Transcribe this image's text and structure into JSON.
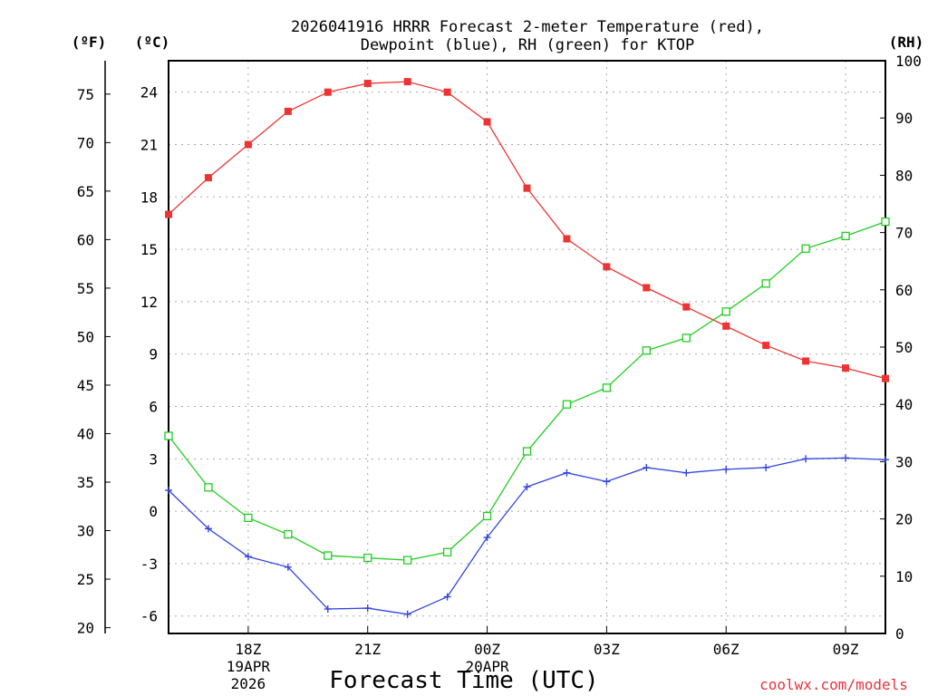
{
  "chart_data": {
    "type": "line",
    "title_line1": "2026041916 HRRR Forecast 2-meter Temperature (red),",
    "title_line2": "Dewpoint (blue), RH (green) for KTOP",
    "xlabel": "Forecast Time (UTC)",
    "credit": "coolwx.com/models",
    "units": {
      "fahrenheit": "(ºF)",
      "celsius": "(ºC)",
      "rh": "(RH)"
    },
    "hours": [
      16,
      17,
      18,
      19,
      20,
      21,
      22,
      23,
      24,
      25,
      26,
      27,
      28,
      29,
      30,
      31,
      32,
      33,
      34
    ],
    "celsius_range": [
      -7,
      25.8
    ],
    "rh_range": [
      0,
      100
    ],
    "x_ticks": [
      {
        "hour": 18,
        "lines": [
          "18Z",
          "19APR",
          "2026"
        ]
      },
      {
        "hour": 21,
        "lines": [
          "21Z"
        ]
      },
      {
        "hour": 24,
        "lines": [
          "00Z",
          "20APR"
        ]
      },
      {
        "hour": 27,
        "lines": [
          "03Z"
        ]
      },
      {
        "hour": 30,
        "lines": [
          "06Z"
        ]
      },
      {
        "hour": 33,
        "lines": [
          "09Z"
        ]
      }
    ],
    "celsius_ticks": [
      "-6",
      "-3",
      "0",
      "3",
      "6",
      "9",
      "12",
      "15",
      "18",
      "21",
      "24"
    ],
    "fahrenheit_ticks": [
      "20",
      "25",
      "30",
      "35",
      "40",
      "45",
      "50",
      "55",
      "60",
      "65",
      "70",
      "75"
    ],
    "rh_ticks": [
      "0",
      "10",
      "20",
      "30",
      "40",
      "50",
      "60",
      "70",
      "80",
      "90",
      "100"
    ],
    "series": [
      {
        "name": "Temperature",
        "unit": "C",
        "color": "#ee3333",
        "marker": "filled-square",
        "values": [
          17.0,
          19.1,
          21.0,
          22.9,
          24.0,
          24.5,
          24.6,
          24.0,
          22.3,
          18.5,
          15.6,
          14.0,
          12.8,
          11.7,
          10.6,
          9.5,
          8.6,
          8.2,
          7.6
        ]
      },
      {
        "name": "Dewpoint",
        "unit": "C",
        "color": "#3344dd",
        "marker": "plus",
        "values": [
          1.2,
          -1.0,
          -2.6,
          -3.2,
          -5.6,
          -5.55,
          -5.9,
          -4.9,
          -1.5,
          1.4,
          2.2,
          1.7,
          2.5,
          2.2,
          2.4,
          2.5,
          3.0,
          3.05,
          2.95
        ]
      },
      {
        "name": "RH",
        "unit": "%",
        "color": "#22cc22",
        "marker": "open-square",
        "values": [
          34.5,
          25.5,
          20.2,
          17.3,
          13.6,
          13.2,
          12.8,
          14.2,
          20.5,
          31.8,
          40.0,
          42.9,
          49.4,
          51.6,
          56.2,
          61.1,
          67.2,
          69.4,
          71.9
        ]
      }
    ]
  }
}
